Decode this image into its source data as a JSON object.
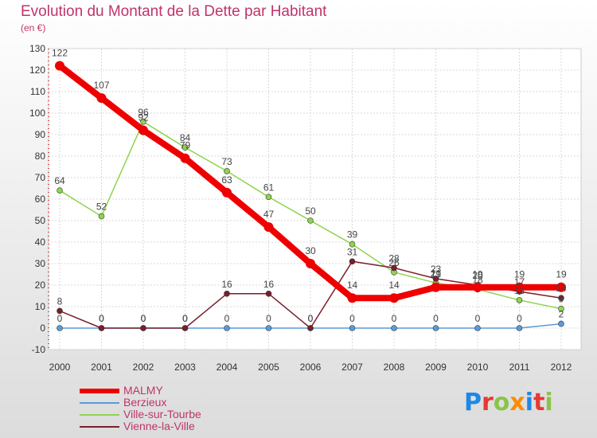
{
  "chart_data": {
    "type": "line",
    "title": "Evolution du Montant de la Dette par Habitant",
    "subtitle": "(en €)",
    "xlabel": "",
    "ylabel": "",
    "x": [
      "2000",
      "2001",
      "2002",
      "2003",
      "2004",
      "2005",
      "2006",
      "2007",
      "2008",
      "2009",
      "2010",
      "2011",
      "2012"
    ],
    "ylim": [
      -10,
      130
    ],
    "yticks": [
      -10,
      0,
      10,
      20,
      30,
      40,
      50,
      60,
      70,
      80,
      90,
      100,
      110,
      120,
      130
    ],
    "grid": true,
    "legend_position": "bottom-left",
    "series": [
      {
        "name": "MALMY",
        "color": "#ee0000",
        "values": [
          122,
          107,
          92,
          79,
          63,
          47,
          30,
          14,
          14,
          19,
          19,
          19,
          19
        ]
      },
      {
        "name": "Berzieux",
        "color": "#5b9bd5",
        "values": [
          0,
          0,
          0,
          0,
          0,
          0,
          0,
          0,
          0,
          0,
          0,
          0,
          2
        ]
      },
      {
        "name": "Ville-sur-Tourbe",
        "color": "#8fd44f",
        "values": [
          64,
          52,
          96,
          84,
          73,
          61,
          50,
          39,
          26,
          21,
          18,
          13,
          9
        ]
      },
      {
        "name": "Vienne-la-Ville",
        "color": "#7a1f2a",
        "values": [
          8,
          0,
          0,
          0,
          16,
          16,
          0,
          31,
          28,
          23,
          20,
          17,
          14
        ]
      }
    ]
  },
  "brand": {
    "text": "Proxiti"
  }
}
